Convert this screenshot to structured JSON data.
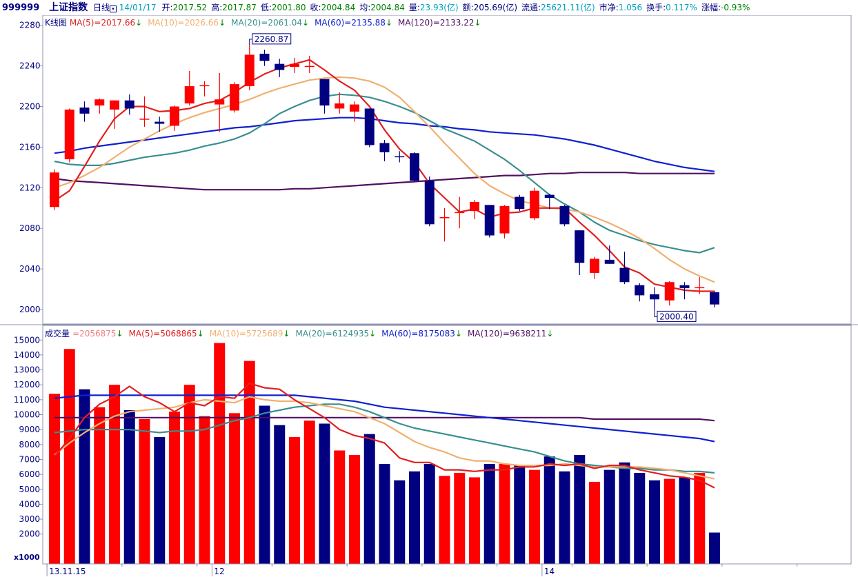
{
  "header": {
    "code": "999999",
    "name": "上证指数",
    "period": "日线",
    "date": "14/01/17",
    "fields": [
      {
        "label": "开:",
        "value": "2017.52",
        "cls": "dn"
      },
      {
        "label": "高:",
        "value": "2017.87",
        "cls": "dn"
      },
      {
        "label": "低:",
        "value": "2001.80",
        "cls": "dn"
      },
      {
        "label": "收:",
        "value": "2004.84",
        "cls": "dn"
      },
      {
        "label": "均:",
        "value": "2004.84",
        "cls": "dn"
      },
      {
        "label": "量:",
        "value": "23.93(亿)",
        "cls": "cy"
      },
      {
        "label": "额:",
        "value": "205.69(亿)",
        "cls": "lbl"
      },
      {
        "label": "流通:",
        "value": "25621.11(亿)",
        "cls": "cy"
      },
      {
        "label": "市净:",
        "value": "1.056",
        "cls": "cy"
      },
      {
        "label": "换手:",
        "value": "0.117%",
        "cls": "cy"
      },
      {
        "label": "涨幅:",
        "value": "-0.93%",
        "cls": "dn"
      }
    ]
  },
  "colors": {
    "up": "#ff0000",
    "down": "#000080",
    "ma5": "#e02020",
    "ma10": "#f0b070",
    "ma20": "#3a8f8f",
    "ma60": "#1020d0",
    "ma120": "#501060",
    "axis": "#9090b0",
    "grid": "#ffffff"
  },
  "chart_data": [
    {
      "type": "candlestick",
      "title": "K线图",
      "ylim": [
        1990,
        2290
      ],
      "yticks": [
        2000,
        2040,
        2080,
        2120,
        2160,
        2200,
        2240,
        2280
      ],
      "xticks": [
        {
          "label": "13.11.15",
          "index": 0
        },
        {
          "label": "12",
          "index": 11
        },
        {
          "label": "14",
          "index": 33
        }
      ],
      "legend": [
        {
          "name": "MA(5)",
          "value": "2017.66",
          "color": "ma5"
        },
        {
          "name": "MA(10)",
          "value": "2026.66",
          "color": "ma10"
        },
        {
          "name": "MA(20)",
          "value": "2061.04",
          "color": "ma20"
        },
        {
          "name": "MA(60)",
          "value": "2135.88",
          "color": "ma60"
        },
        {
          "name": "MA(120)",
          "value": "2133.22",
          "color": "ma120"
        }
      ],
      "annotations": [
        {
          "text": "2260.87",
          "index": 13,
          "value": 2260.87
        },
        {
          "text": "2000.40",
          "index": 40,
          "value": 2000.4
        }
      ],
      "ohlc": [
        [
          2101,
          2138,
          2098,
          2135
        ],
        [
          2148,
          2198,
          2145,
          2197
        ],
        [
          2199,
          2205,
          2185,
          2193
        ],
        [
          2201,
          2208,
          2193,
          2207
        ],
        [
          2197,
          2206,
          2178,
          2206
        ],
        [
          2206,
          2212,
          2192,
          2198
        ],
        [
          2188,
          2210,
          2180,
          2188
        ],
        [
          2185,
          2190,
          2175,
          2183
        ],
        [
          2181,
          2201,
          2176,
          2200
        ],
        [
          2203,
          2235,
          2201,
          2220
        ],
        [
          2221,
          2225,
          2210,
          2221
        ],
        [
          2202,
          2233,
          2175,
          2207
        ],
        [
          2196,
          2224,
          2194,
          2222
        ],
        [
          2220,
          2261,
          2216,
          2251
        ],
        [
          2252,
          2256,
          2240,
          2245
        ],
        [
          2242,
          2247,
          2229,
          2236
        ],
        [
          2239,
          2248,
          2233,
          2242
        ],
        [
          2239,
          2250,
          2233,
          2240
        ],
        [
          2227,
          2227,
          2193,
          2201
        ],
        [
          2198,
          2214,
          2193,
          2203
        ],
        [
          2195,
          2205,
          2185,
          2202
        ],
        [
          2198,
          2198,
          2160,
          2162
        ],
        [
          2164,
          2167,
          2146,
          2155
        ],
        [
          2151,
          2156,
          2145,
          2150
        ],
        [
          2154,
          2155,
          2126,
          2127
        ],
        [
          2127,
          2131,
          2082,
          2084
        ],
        [
          2091,
          2100,
          2067,
          2091
        ],
        [
          2096,
          2111,
          2080,
          2096
        ],
        [
          2097,
          2108,
          2089,
          2106
        ],
        [
          2103,
          2103,
          2071,
          2073
        ],
        [
          2075,
          2103,
          2070,
          2102
        ],
        [
          2111,
          2113,
          2097,
          2099
        ],
        [
          2090,
          2120,
          2088,
          2117
        ],
        [
          2113,
          2114,
          2099,
          2110
        ],
        [
          2102,
          2103,
          2082,
          2084
        ],
        [
          2078,
          2078,
          2034,
          2046
        ],
        [
          2036,
          2052,
          2030,
          2050
        ],
        [
          2049,
          2063,
          2045,
          2045
        ],
        [
          2041,
          2057,
          2025,
          2027
        ],
        [
          2024,
          2026,
          2008,
          2014
        ],
        [
          2015,
          2022,
          2000,
          2010
        ],
        [
          2009,
          2028,
          2004,
          2027
        ],
        [
          2024,
          2027,
          2010,
          2021
        ],
        [
          2022,
          2032,
          2015,
          2022
        ],
        [
          2017,
          2018,
          2002,
          2005
        ]
      ],
      "series": [
        {
          "name": "MA(5)",
          "color": "ma5",
          "values": [
            2107,
            2117,
            2141,
            2166,
            2188,
            2200,
            2200,
            2195,
            2196,
            2198,
            2203,
            2206,
            2214,
            2224,
            2232,
            2238,
            2242,
            2246,
            2236,
            2225,
            2216,
            2200,
            2177,
            2158,
            2145,
            2124,
            2110,
            2096,
            2099,
            2091,
            2095,
            2096,
            2100,
            2100,
            2100,
            2086,
            2073,
            2058,
            2042,
            2036,
            2025,
            2022,
            2019,
            2018,
            2018
          ]
        },
        {
          "name": "MA(10)",
          "color": "ma10",
          "values": [
            2120,
            2125,
            2132,
            2140,
            2150,
            2160,
            2168,
            2176,
            2183,
            2189,
            2194,
            2198,
            2202,
            2207,
            2213,
            2218,
            2222,
            2226,
            2228,
            2229,
            2228,
            2225,
            2219,
            2209,
            2195,
            2180,
            2164,
            2149,
            2134,
            2122,
            2114,
            2107,
            2104,
            2100,
            2099,
            2096,
            2091,
            2085,
            2078,
            2070,
            2060,
            2049,
            2040,
            2033,
            2027
          ]
        },
        {
          "name": "MA(20)",
          "color": "ma20",
          "values": [
            2146,
            2143,
            2142,
            2142,
            2144,
            2147,
            2150,
            2152,
            2154,
            2157,
            2161,
            2164,
            2168,
            2174,
            2183,
            2193,
            2200,
            2206,
            2210,
            2212,
            2211,
            2209,
            2205,
            2200,
            2194,
            2186,
            2178,
            2172,
            2166,
            2157,
            2148,
            2137,
            2125,
            2113,
            2104,
            2096,
            2086,
            2078,
            2073,
            2068,
            2064,
            2061,
            2058,
            2056,
            2061
          ]
        },
        {
          "name": "MA(60)",
          "color": "ma60",
          "values": [
            2154,
            2156,
            2159,
            2161,
            2163,
            2165,
            2167,
            2169,
            2171,
            2173,
            2175,
            2177,
            2179,
            2180,
            2182,
            2184,
            2186,
            2187,
            2188,
            2189,
            2189,
            2188,
            2186,
            2184,
            2183,
            2181,
            2180,
            2178,
            2177,
            2175,
            2174,
            2173,
            2172,
            2170,
            2168,
            2165,
            2162,
            2158,
            2154,
            2150,
            2146,
            2143,
            2140,
            2138,
            2136
          ]
        },
        {
          "name": "MA(120)",
          "color": "ma120",
          "values": [
            2129,
            2127,
            2126,
            2125,
            2124,
            2123,
            2122,
            2121,
            2120,
            2119,
            2118,
            2118,
            2118,
            2118,
            2118,
            2118,
            2119,
            2119,
            2120,
            2121,
            2122,
            2123,
            2124,
            2125,
            2126,
            2127,
            2128,
            2129,
            2130,
            2131,
            2132,
            2132,
            2133,
            2134,
            2134,
            2135,
            2135,
            2135,
            2135,
            2134,
            2134,
            2134,
            2134,
            2134,
            2134
          ]
        }
      ]
    },
    {
      "type": "bar",
      "title": "成交量",
      "unit_label": "x1000",
      "ylim": [
        0,
        15600
      ],
      "yticks": [
        2000,
        3000,
        4000,
        5000,
        6000,
        7000,
        8000,
        9000,
        10000,
        11000,
        12000,
        13000,
        14000,
        15000
      ],
      "legend": [
        {
          "name": "",
          "value": "2056875",
          "color": "#f08080"
        },
        {
          "name": "MA(5)",
          "value": "5068865",
          "color": "ma5"
        },
        {
          "name": "MA(10)",
          "value": "5725689",
          "color": "ma10"
        },
        {
          "name": "MA(20)",
          "value": "6124935",
          "color": "ma20"
        },
        {
          "name": "MA(60)",
          "value": "8175083",
          "color": "ma60"
        },
        {
          "name": "MA(120)",
          "value": "9638211",
          "color": "ma120"
        }
      ],
      "values": [
        11400,
        14400,
        11700,
        10500,
        12000,
        10300,
        9700,
        8500,
        10200,
        12000,
        9900,
        14800,
        10100,
        13600,
        10600,
        9300,
        8500,
        9600,
        9400,
        7600,
        7300,
        8700,
        6700,
        5600,
        6200,
        6700,
        5900,
        6100,
        5800,
        6700,
        6700,
        6600,
        6300,
        7200,
        6200,
        7300,
        5500,
        6300,
        6800,
        6100,
        5600,
        5700,
        5800,
        6100,
        2100
      ],
      "series": [
        {
          "name": "MA(5)",
          "color": "ma5",
          "values": [
            7200,
            8400,
            9800,
            10700,
            11200,
            11900,
            11200,
            10800,
            10200,
            10800,
            10600,
            11200,
            11100,
            12100,
            11800,
            11700,
            11000,
            10400,
            9800,
            9000,
            8600,
            8400,
            8100,
            7100,
            6800,
            6800,
            6300,
            6300,
            6200,
            6300,
            6300,
            6500,
            6500,
            6700,
            6600,
            6700,
            6400,
            6600,
            6600,
            6300,
            6100,
            5900,
            5800,
            5600,
            5100
          ]
        },
        {
          "name": "MA(10)",
          "color": "ma10",
          "values": [
            7300,
            8100,
            8800,
            9400,
            9900,
            10200,
            10300,
            10400,
            10500,
            10800,
            11000,
            10900,
            10800,
            11200,
            11000,
            10900,
            10900,
            10800,
            10600,
            10400,
            10200,
            9800,
            9400,
            8800,
            8200,
            7800,
            7500,
            7100,
            6900,
            6900,
            6700,
            6600,
            6600,
            6600,
            6700,
            6600,
            6500,
            6500,
            6500,
            6500,
            6400,
            6300,
            6100,
            5900,
            5700
          ]
        },
        {
          "name": "MA(20)",
          "color": "ma20",
          "values": [
            8800,
            8900,
            9000,
            9000,
            9000,
            9000,
            8900,
            8800,
            8900,
            8900,
            9000,
            9300,
            9600,
            9800,
            10100,
            10300,
            10500,
            10600,
            10700,
            10700,
            10500,
            10200,
            9800,
            9400,
            9100,
            8900,
            8700,
            8500,
            8300,
            8100,
            7900,
            7700,
            7500,
            7200,
            6900,
            6700,
            6600,
            6500,
            6400,
            6400,
            6300,
            6300,
            6200,
            6200,
            6100
          ]
        },
        {
          "name": "MA(60)",
          "color": "ma60",
          "values": [
            11100,
            11200,
            11300,
            11300,
            11300,
            11300,
            11300,
            11300,
            11300,
            11300,
            11300,
            11300,
            11300,
            11300,
            11300,
            11300,
            11300,
            11200,
            11100,
            11000,
            10900,
            10700,
            10500,
            10400,
            10300,
            10200,
            10100,
            10000,
            9900,
            9800,
            9700,
            9600,
            9500,
            9400,
            9300,
            9200,
            9100,
            9000,
            8900,
            8800,
            8700,
            8600,
            8500,
            8400,
            8200
          ]
        },
        {
          "name": "MA(120)",
          "color": "ma120",
          "values": [
            9800,
            9800,
            9800,
            9800,
            9800,
            9800,
            9800,
            9800,
            9800,
            9800,
            9800,
            9800,
            9800,
            9800,
            9800,
            9800,
            9800,
            9800,
            9800,
            9800,
            9800,
            9800,
            9800,
            9800,
            9800,
            9800,
            9800,
            9800,
            9800,
            9800,
            9800,
            9800,
            9800,
            9800,
            9800,
            9800,
            9700,
            9700,
            9700,
            9700,
            9700,
            9700,
            9700,
            9700,
            9600
          ]
        }
      ]
    }
  ]
}
